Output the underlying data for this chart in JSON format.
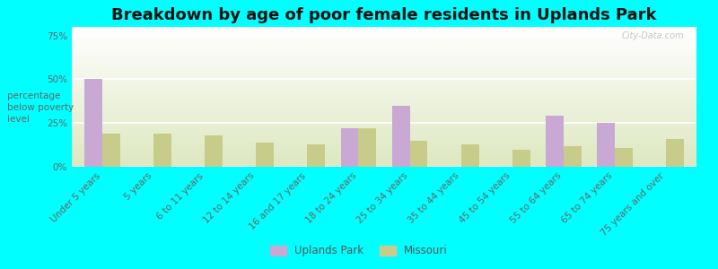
{
  "title": "Breakdown by age of poor female residents in Uplands Park",
  "ylabel": "percentage\nbelow poverty\nlevel",
  "categories": [
    "Under 5 years",
    "5 years",
    "6 to 11 years",
    "12 to 14 years",
    "16 and 17 years",
    "18 to 24 years",
    "25 to 34 years",
    "35 to 44 years",
    "45 to 54 years",
    "55 to 64 years",
    "65 to 74 years",
    "75 years and over"
  ],
  "uplands_park": [
    50,
    0,
    0,
    0,
    0,
    22,
    35,
    0,
    0,
    29,
    25,
    0
  ],
  "missouri": [
    19,
    19,
    18,
    14,
    13,
    22,
    15,
    13,
    10,
    12,
    11,
    16
  ],
  "uplands_color": "#c9a8d4",
  "missouri_color": "#c8cc8a",
  "background_color": "#00ffff",
  "plot_bg_color": "#eef2e0",
  "ylim": [
    0,
    80
  ],
  "yticks": [
    0,
    25,
    50,
    75
  ],
  "ytick_labels": [
    "0%",
    "25%",
    "50%",
    "75%"
  ],
  "title_fontsize": 13,
  "label_fontsize": 7.5,
  "tick_fontsize": 7.5,
  "bar_width": 0.35,
  "watermark": "City-Data.com"
}
